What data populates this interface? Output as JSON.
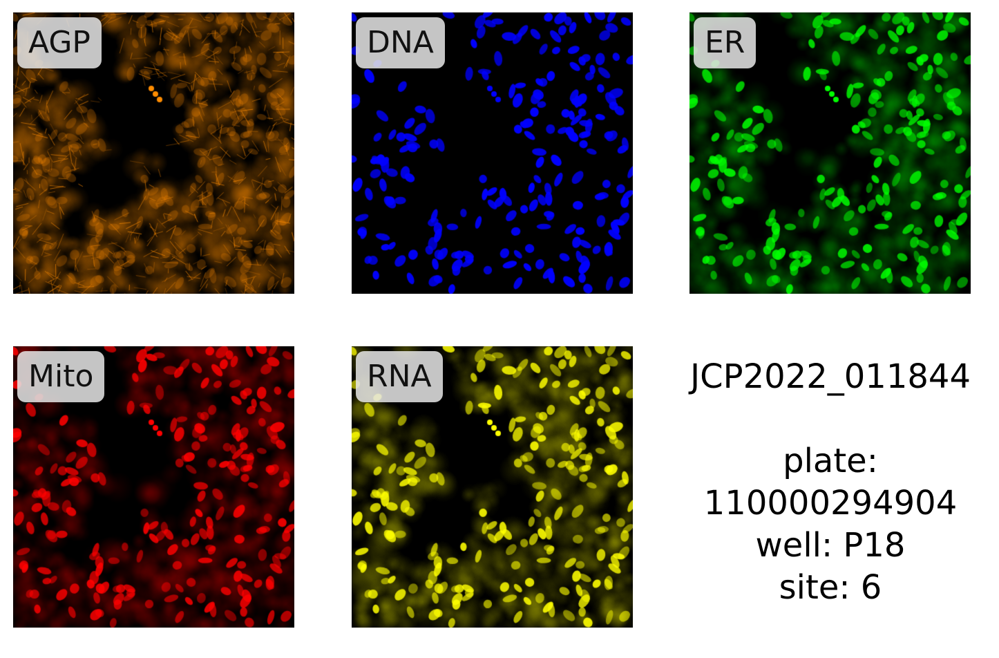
{
  "panels": [
    {
      "id": "agp",
      "label": "AGP",
      "color": "#ff8c00"
    },
    {
      "id": "dna",
      "label": "DNA",
      "color": "#0000ff"
    },
    {
      "id": "er",
      "label": "ER",
      "color": "#00ff00"
    },
    {
      "id": "mito",
      "label": "Mito",
      "color": "#ff0000"
    },
    {
      "id": "rna",
      "label": "RNA",
      "color": "#ffff00"
    }
  ],
  "info": {
    "compound": "JCP2022_011844",
    "plate_label": "plate:",
    "plate_value": "110000294904",
    "well": "well: P18",
    "site": "site: 6"
  }
}
